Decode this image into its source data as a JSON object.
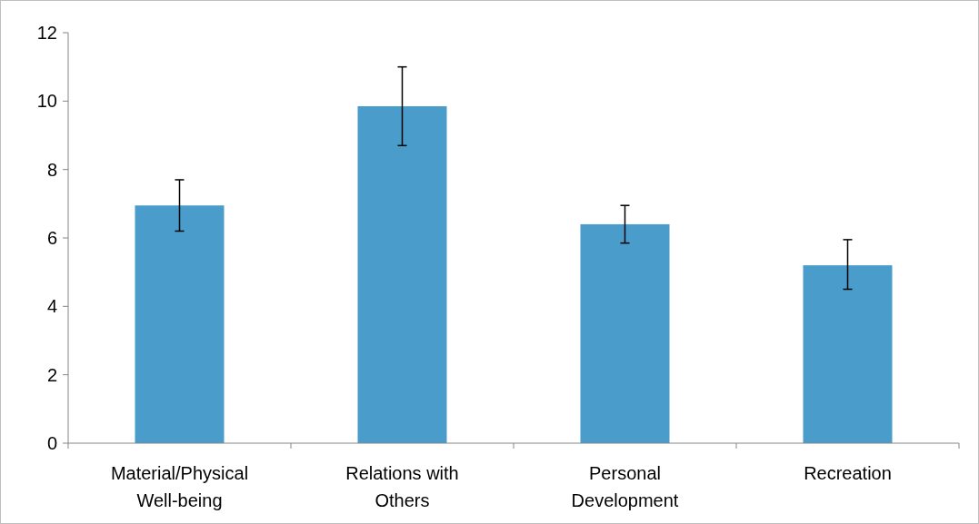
{
  "chart_data": {
    "type": "bar",
    "categories": [
      "Material/Physical Well-being",
      "Relations with Others",
      "Personal Development",
      "Recreation"
    ],
    "values": [
      6.95,
      9.85,
      6.4,
      5.2
    ],
    "errors": [
      [
        6.2,
        7.7
      ],
      [
        8.7,
        11.0
      ],
      [
        5.85,
        6.95
      ],
      [
        4.5,
        5.95
      ]
    ],
    "color": "#4a9ccb",
    "ylim": [
      0,
      12
    ],
    "yticks": [
      0,
      2,
      4,
      6,
      8,
      10,
      12
    ],
    "grid": false
  }
}
